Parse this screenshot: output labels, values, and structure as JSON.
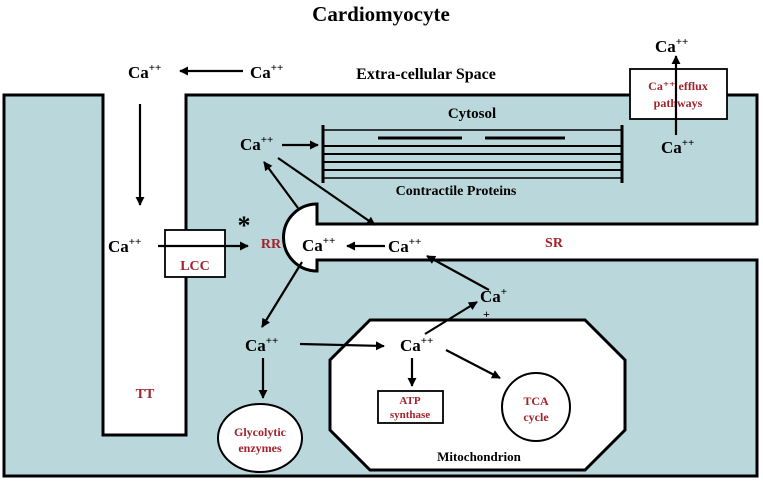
{
  "title": "Cardiomyocyte",
  "labels": {
    "extracellular": "Extra-cellular Space",
    "cytosol": "Cytosol",
    "contractile": "Contractile Proteins",
    "sr": "SR",
    "rr": "RR",
    "lcc": "LCC",
    "tt": "TT",
    "asterisk": "*",
    "efflux_line1": "Ca⁺⁺ efflux",
    "efflux_line2": "pathways",
    "atp_line1": "ATP",
    "atp_line2": "synthase",
    "tca_line1": "TCA",
    "tca_line2": "cycle",
    "glyco_line1": "Glycolytic",
    "glyco_line2": "enzymes",
    "mito": "Mitochondrion",
    "ion": "Ca",
    "charge": "++",
    "charge_plus": "+"
  },
  "colors": {
    "cytosol_fill": "#bad8dc",
    "label_red": "#a1232b",
    "line": "#000000"
  }
}
